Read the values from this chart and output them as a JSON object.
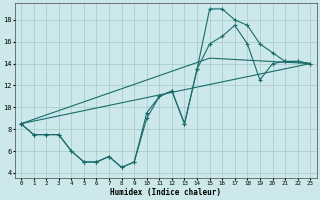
{
  "xlabel": "Humidex (Indice chaleur)",
  "bg_color": "#cce8ea",
  "grid_color": "#aacdd0",
  "line_color": "#1a6b6b",
  "xlim": [
    -0.5,
    23.5
  ],
  "ylim": [
    3.5,
    19.5
  ],
  "xticks": [
    0,
    1,
    2,
    3,
    4,
    5,
    6,
    7,
    8,
    9,
    10,
    11,
    12,
    13,
    14,
    15,
    16,
    17,
    18,
    19,
    20,
    21,
    22,
    23
  ],
  "yticks": [
    4,
    6,
    8,
    10,
    12,
    14,
    16,
    18
  ],
  "line1_x": [
    0,
    1,
    2,
    3,
    4,
    5,
    6,
    7,
    8,
    9,
    10,
    11,
    12,
    13,
    14,
    15,
    16,
    17,
    18,
    19,
    20,
    21,
    22,
    23
  ],
  "line1_y": [
    8.5,
    7.5,
    7.5,
    7.5,
    6.0,
    5.0,
    5.0,
    5.5,
    4.5,
    5.0,
    9.0,
    11.0,
    11.5,
    8.5,
    13.5,
    19.0,
    19.0,
    18.0,
    17.5,
    15.8,
    15.0,
    14.2,
    14.2,
    14.0
  ],
  "line2_x": [
    0,
    1,
    2,
    3,
    4,
    5,
    6,
    7,
    8,
    9,
    10,
    11,
    12,
    13,
    14,
    15,
    16,
    17,
    18,
    19,
    20,
    21,
    22,
    23
  ],
  "line2_y": [
    8.5,
    7.5,
    7.5,
    7.5,
    6.0,
    5.0,
    5.0,
    5.5,
    4.5,
    5.0,
    9.5,
    11.0,
    11.5,
    8.5,
    13.5,
    15.8,
    16.5,
    17.5,
    15.8,
    12.5,
    14.0,
    14.2,
    14.2,
    14.0
  ],
  "line3_x": [
    0,
    23
  ],
  "line3_y": [
    8.5,
    14.0
  ],
  "line4_x": [
    0,
    15,
    23
  ],
  "line4_y": [
    8.5,
    14.5,
    14.0
  ]
}
